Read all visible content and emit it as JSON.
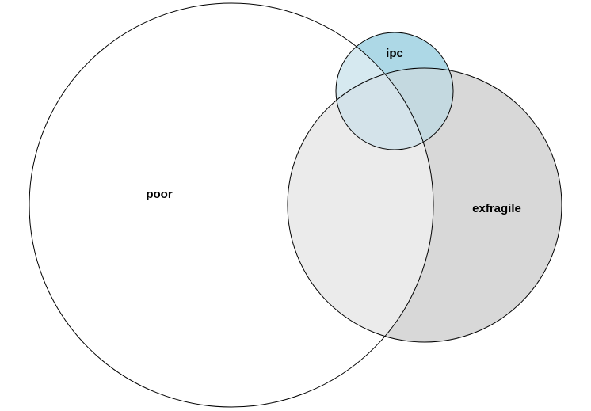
{
  "diagram": {
    "type": "venn",
    "sets": [
      {
        "key": "poor",
        "label": "poor",
        "fill": "#ffffff"
      },
      {
        "key": "exfragile",
        "label": "exfragile",
        "fill": "#d8d8d8"
      },
      {
        "key": "ipc",
        "label": "ipc",
        "fill": "#add8e6"
      }
    ],
    "overlaps": {
      "poor_exfragile": "#ebebeb",
      "poor_ipc": "#d6e9f0",
      "exfragile_ipc": "#c4d9e0",
      "all_three": "#d4e3ea"
    },
    "stroke": "#000000"
  }
}
